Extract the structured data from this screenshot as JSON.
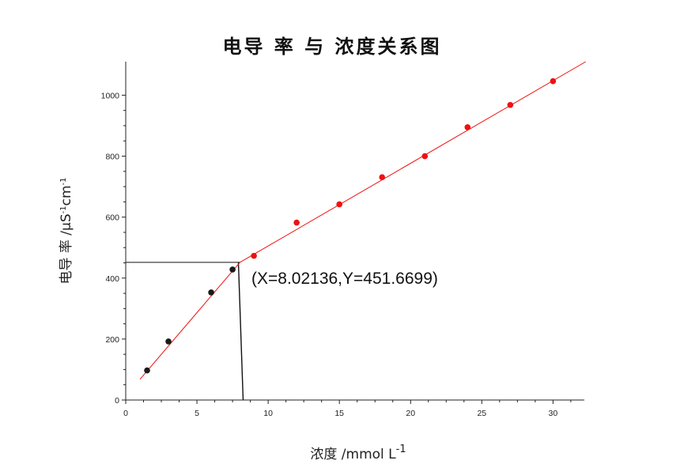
{
  "chart_data": {
    "type": "scatter",
    "title": "电导 率 与 浓度关系图",
    "xlabel": "浓度 /mmol  L",
    "xlabel_sup": "-1",
    "ylabel": "电导 率 /μS",
    "ylabel_mid": "cm",
    "ylabel_sup1": "-1",
    "ylabel_sup2": "-1",
    "xlim": [
      0,
      32.2
    ],
    "ylim": [
      0,
      1110
    ],
    "xticks": [
      0,
      5,
      10,
      15,
      20,
      25,
      30
    ],
    "xtick_labels": [
      "0",
      "5",
      "10",
      "15",
      "20",
      "25",
      "30"
    ],
    "yticks": [
      0,
      200,
      400,
      600,
      800,
      1000
    ],
    "ytick_labels": [
      "0",
      "200",
      "400",
      "600",
      "800",
      "1000"
    ],
    "series": [
      {
        "color": "#1a1a1a",
        "points": [
          {
            "x": 1.5,
            "y": 97
          },
          {
            "x": 3.0,
            "y": 192
          },
          {
            "x": 6.0,
            "y": 353
          },
          {
            "x": 7.5,
            "y": 428
          }
        ]
      },
      {
        "color": "#ee1111",
        "points": [
          {
            "x": 9.0,
            "y": 473
          },
          {
            "x": 12.0,
            "y": 582
          },
          {
            "x": 15.0,
            "y": 642
          },
          {
            "x": 18.0,
            "y": 731
          },
          {
            "x": 21.0,
            "y": 800
          },
          {
            "x": 24.0,
            "y": 895
          },
          {
            "x": 27.0,
            "y": 968
          },
          {
            "x": 30.0,
            "y": 1046
          }
        ]
      }
    ],
    "fit_lines": [
      {
        "color": "#ee1111",
        "points": [
          {
            "x": 1.0,
            "y": 68
          },
          {
            "x": 8.02136,
            "y": 451.6699
          }
        ]
      },
      {
        "color": "#ee1111",
        "points": [
          {
            "x": 8.02136,
            "y": 451.6699
          },
          {
            "x": 32.3,
            "y": 1110
          }
        ]
      }
    ],
    "intersection": {
      "x": 8.02136,
      "y": 451.6699
    },
    "annotation": "(X=8.02136,Y=451.6699)",
    "grid": false
  }
}
